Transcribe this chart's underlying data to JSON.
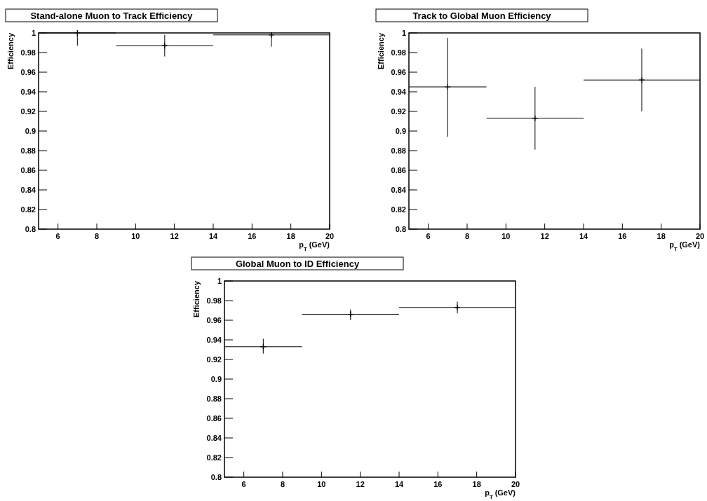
{
  "chart_data": [
    {
      "type": "scatter",
      "title": "Stand-alone Muon to Track Efficiency",
      "xlabel": "p$_{T}$ (GeV)",
      "ylabel": "Efficiency",
      "x": [
        7,
        11.5,
        17
      ],
      "values": [
        1.0,
        0.987,
        0.998
      ],
      "xerrors": [
        [
          5,
          9
        ],
        [
          9,
          14
        ],
        [
          14,
          20
        ]
      ],
      "errors": [
        [
          0.987,
          1.0
        ],
        [
          0.976,
          0.998
        ],
        [
          0.986,
          1.0
        ]
      ],
      "color": "#000000",
      "marker": "cross",
      "xlim": [
        5,
        20
      ],
      "xticks": [
        6,
        8,
        10,
        12,
        14,
        16,
        18,
        20
      ],
      "ylim": [
        0.8,
        1
      ],
      "yticks": [
        0.8,
        0.82,
        0.84,
        0.86,
        0.88,
        0.9,
        0.92,
        0.94,
        0.96,
        0.98,
        1
      ]
    },
    {
      "type": "scatter",
      "title": "Track to Global Muon Efficiency",
      "xlabel": "p$_{T}$ (GeV)",
      "ylabel": "Efficiency",
      "x": [
        7,
        11.5,
        17
      ],
      "values": [
        0.945,
        0.913,
        0.952
      ],
      "xerrors": [
        [
          5,
          9
        ],
        [
          9,
          14
        ],
        [
          14,
          20
        ]
      ],
      "errors": [
        [
          0.894,
          0.995
        ],
        [
          0.881,
          0.945
        ],
        [
          0.92,
          0.984
        ]
      ],
      "color": "#000000",
      "marker": "cross",
      "xlim": [
        5,
        20
      ],
      "xticks": [
        6,
        8,
        10,
        12,
        14,
        16,
        18,
        20
      ],
      "ylim": [
        0.8,
        1
      ],
      "yticks": [
        0.8,
        0.82,
        0.84,
        0.86,
        0.88,
        0.9,
        0.92,
        0.94,
        0.96,
        0.98,
        1
      ]
    },
    {
      "type": "scatter",
      "title": "Global Muon to ID Efficiency",
      "xlabel": "p$_{T}$ (GeV)",
      "ylabel": "Efficiency",
      "x": [
        7,
        11.5,
        17
      ],
      "values": [
        0.933,
        0.966,
        0.973
      ],
      "xerrors": [
        [
          5,
          9
        ],
        [
          9,
          14
        ],
        [
          14,
          20
        ]
      ],
      "errors": [
        [
          0.926,
          0.941
        ],
        [
          0.96,
          0.971
        ],
        [
          0.967,
          0.979
        ]
      ],
      "color": "#000000",
      "marker": "cross",
      "xlim": [
        5,
        20
      ],
      "xticks": [
        6,
        8,
        10,
        12,
        14,
        16,
        18,
        20
      ],
      "ylim": [
        0.8,
        1
      ],
      "yticks": [
        0.8,
        0.82,
        0.84,
        0.86,
        0.88,
        0.9,
        0.92,
        0.94,
        0.96,
        0.98,
        1
      ]
    }
  ]
}
